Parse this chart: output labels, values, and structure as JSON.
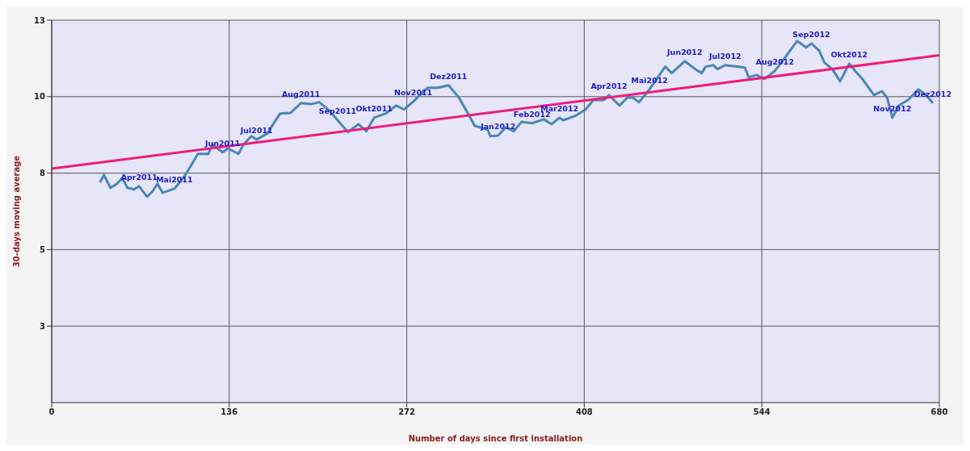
{
  "chart_data": {
    "type": "line",
    "xlabel": "Number of days since first installation",
    "ylabel": "30-days moving average",
    "xlim": [
      0,
      680
    ],
    "xticks": [
      0,
      136,
      272,
      408,
      544,
      680
    ],
    "ylim": [
      0,
      12.5
    ],
    "yticks": [
      {
        "value": 2.5,
        "label": "3"
      },
      5,
      {
        "value": 7.5,
        "label": "8"
      },
      10,
      {
        "value": 12.5,
        "label": "13"
      }
    ],
    "grid": true,
    "legend": false,
    "marker": "none",
    "line_style": "solid",
    "series": [
      {
        "color": "#4a86b4",
        "x": [
          37,
          40,
          45,
          50,
          54,
          58,
          63,
          67,
          73,
          77,
          81,
          85,
          94,
          102,
          112,
          120,
          123,
          131,
          135,
          143,
          147,
          153,
          157,
          165,
          175,
          183,
          191,
          199,
          205,
          213,
          219,
          227,
          235,
          241,
          247,
          256,
          264,
          270,
          277,
          288,
          296,
          304,
          312,
          320,
          324,
          334,
          336,
          342,
          348,
          354,
          360,
          368,
          377,
          383,
          389,
          392,
          401,
          409,
          415,
          423,
          427,
          435,
          441,
          445,
          450,
          458,
          470,
          475,
          485,
          493,
          498,
          501,
          507,
          510,
          516,
          531,
          534,
          540,
          546,
          554,
          562,
          571,
          578,
          582,
          588,
          592,
          598,
          604,
          611,
          616,
          621,
          630,
          636,
          640,
          644,
          649,
          656,
          664,
          670,
          675
        ],
        "values": [
          7.2,
          7.44,
          7.02,
          7.15,
          7.34,
          7.02,
          6.97,
          7.07,
          6.73,
          6.89,
          7.15,
          6.86,
          6.99,
          7.41,
          8.13,
          8.13,
          8.44,
          8.18,
          8.31,
          8.13,
          8.44,
          8.71,
          8.6,
          8.79,
          9.45,
          9.47,
          9.79,
          9.76,
          9.82,
          9.53,
          9.23,
          8.84,
          9.1,
          8.87,
          9.31,
          9.45,
          9.71,
          9.58,
          9.84,
          10.29,
          10.29,
          10.37,
          9.97,
          9.37,
          9.05,
          8.92,
          8.71,
          8.73,
          9.0,
          8.87,
          9.18,
          9.13,
          9.26,
          9.1,
          9.31,
          9.23,
          9.37,
          9.58,
          9.89,
          9.89,
          10.05,
          9.71,
          9.97,
          9.97,
          9.82,
          10.24,
          10.98,
          10.77,
          11.16,
          10.9,
          10.77,
          10.98,
          11.03,
          10.9,
          11.03,
          10.95,
          10.63,
          10.71,
          10.58,
          10.84,
          11.29,
          11.82,
          11.61,
          11.74,
          11.5,
          11.11,
          10.9,
          10.5,
          11.08,
          10.82,
          10.58,
          10.05,
          10.18,
          9.97,
          9.31,
          9.71,
          9.89,
          10.24,
          10.05,
          9.79
        ]
      },
      {
        "color": "#ee1c7c",
        "x": [
          0,
          680
        ],
        "values": [
          7.65,
          11.35
        ]
      }
    ],
    "annotations": [
      {
        "text": "Apr2011",
        "x": 67,
        "y": 7.07
      },
      {
        "text": "Mai2011",
        "x": 94,
        "y": 6.99
      },
      {
        "text": "Jun2011",
        "x": 131,
        "y": 8.18
      },
      {
        "text": "Jul2011",
        "x": 157,
        "y": 8.6
      },
      {
        "text": "Aug2011",
        "x": 191,
        "y": 9.79
      },
      {
        "text": "Sep2011",
        "x": 219,
        "y": 9.23
      },
      {
        "text": "Okt2011",
        "x": 247,
        "y": 9.31
      },
      {
        "text": "Nov2011",
        "x": 277,
        "y": 9.84
      },
      {
        "text": "Dez2011",
        "x": 304,
        "y": 10.37
      },
      {
        "text": "Jan2012",
        "x": 342,
        "y": 8.73
      },
      {
        "text": "Feb2012",
        "x": 368,
        "y": 9.13
      },
      {
        "text": "Mar2012",
        "x": 389,
        "y": 9.31
      },
      {
        "text": "Apr2012",
        "x": 427,
        "y": 10.05
      },
      {
        "text": "Mai2012",
        "x": 458,
        "y": 10.24
      },
      {
        "text": "Jun2012",
        "x": 485,
        "y": 11.16
      },
      {
        "text": "Jul2012",
        "x": 516,
        "y": 11.03
      },
      {
        "text": "Aug2012",
        "x": 554,
        "y": 10.84
      },
      {
        "text": "Sep2012",
        "x": 582,
        "y": 11.74
      },
      {
        "text": "Okt2012",
        "x": 611,
        "y": 11.08
      },
      {
        "text": "Nov2012",
        "x": 644,
        "y": 9.31
      },
      {
        "text": "Dez2012",
        "x": 675,
        "y": 9.79
      }
    ]
  }
}
